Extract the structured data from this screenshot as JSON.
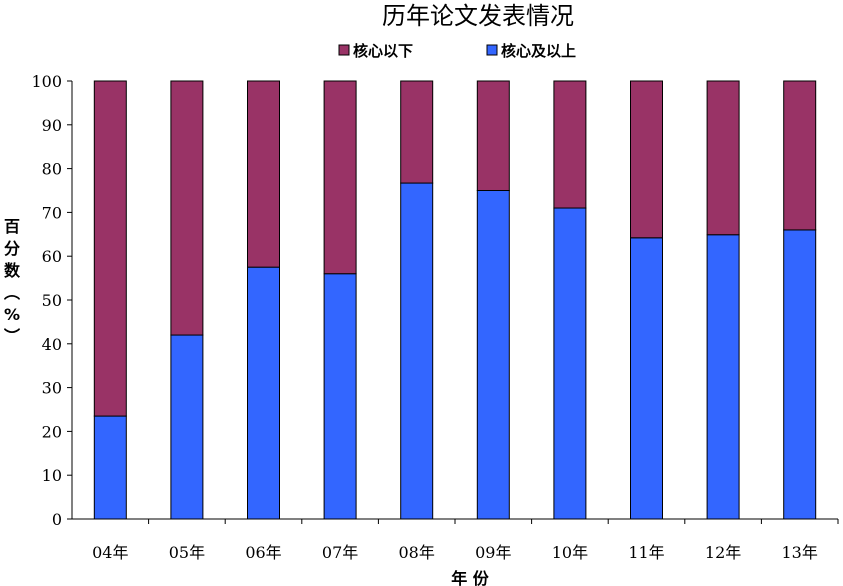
{
  "chart_data": {
    "type": "bar",
    "stacked": true,
    "percent": true,
    "title": "历年论文发表情况",
    "xlabel": "年 份",
    "ylabel": "百分数（%）",
    "ylim": [
      0,
      100
    ],
    "yticks": [
      0,
      10,
      20,
      30,
      40,
      50,
      60,
      70,
      80,
      90,
      100
    ],
    "legend_position": "top",
    "grid": false,
    "categories": [
      "04年",
      "05年",
      "06年",
      "07年",
      "08年",
      "09年",
      "10年",
      "11年",
      "12年",
      "13年"
    ],
    "series": [
      {
        "name": "核心及以上",
        "color": "#3366FF",
        "values": [
          23.5,
          42,
          57.5,
          56,
          76.7,
          75,
          71,
          64.2,
          64.9,
          66
        ]
      },
      {
        "name": "核心以下",
        "color": "#993366",
        "values": [
          76.5,
          58,
          42.5,
          44,
          23.3,
          25,
          29,
          35.8,
          35.1,
          34
        ]
      }
    ],
    "legend_order": [
      "核心以下",
      "核心及以上"
    ]
  }
}
